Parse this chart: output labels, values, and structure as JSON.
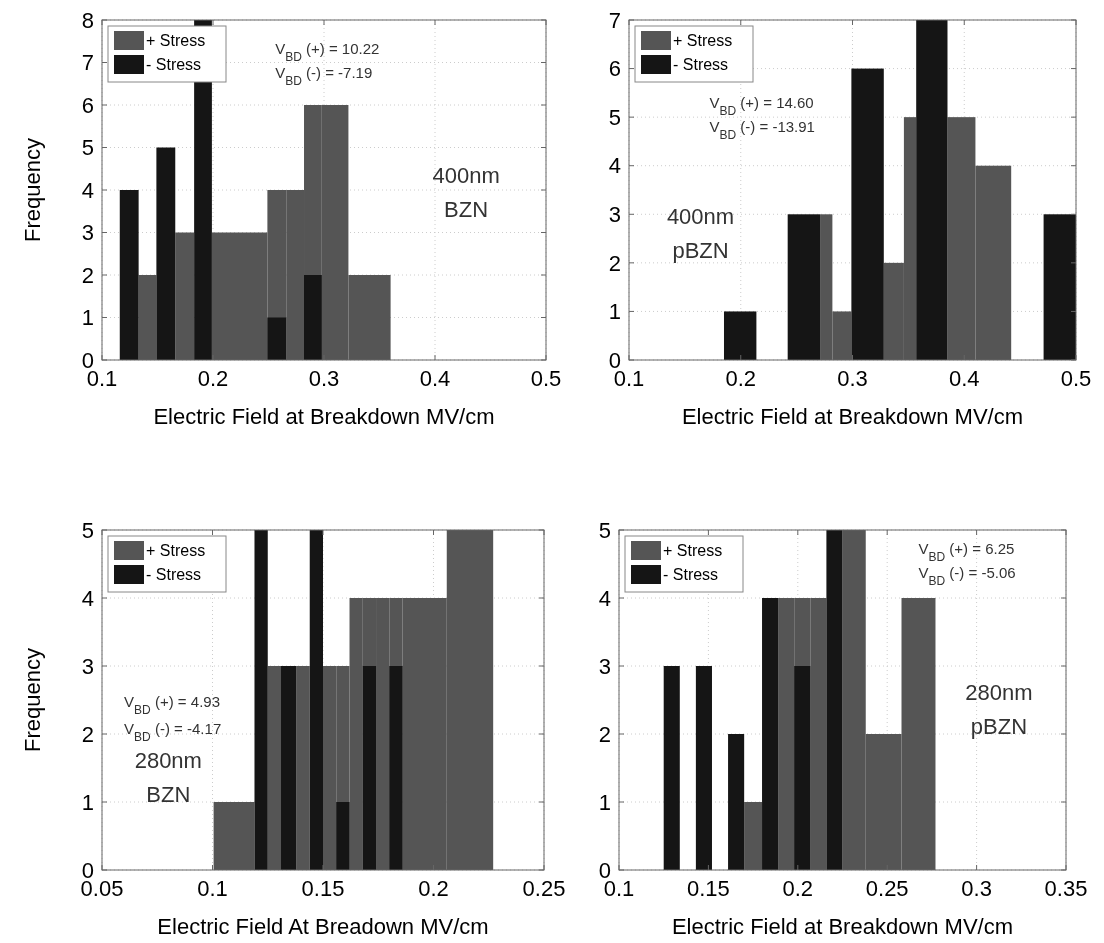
{
  "chart_data": [
    {
      "type": "histogram",
      "ylabel": "Frequency",
      "xlabel": "Electric Field at Breakdown MV/cm",
      "xlim": [
        0.1,
        0.5
      ],
      "xticks": [
        0.1,
        0.2,
        0.3,
        0.4,
        0.5
      ],
      "ylim": [
        0,
        8
      ],
      "yticks": [
        0,
        1,
        2,
        3,
        4,
        5,
        6,
        7,
        8
      ],
      "grid": true,
      "legend": "top left",
      "annotations": [
        "V$_{BD}$ (+) = 10.22",
        "V$_{BD}$ (-) = -7.19",
        "400nm",
        "BZN"
      ],
      "bins": [
        0.116,
        0.133,
        0.149,
        0.166,
        0.183,
        0.199,
        0.249,
        0.266,
        0.282,
        0.298,
        0.322,
        0.36
      ],
      "series": [
        {
          "name": "+ Stress",
          "color": "#555555",
          "values": [
            null,
            2,
            null,
            3,
            null,
            3,
            4,
            4,
            6,
            6,
            2
          ]
        },
        {
          "name": "- Stress",
          "color": "#151515",
          "values": [
            4,
            null,
            5,
            null,
            8,
            null,
            1,
            null,
            2,
            null,
            null
          ]
        }
      ]
    },
    {
      "type": "histogram",
      "xlabel": "Electric Field at Breakdown MV/cm",
      "xlim": [
        0.1,
        0.5
      ],
      "xticks": [
        0.1,
        0.2,
        0.3,
        0.4,
        0.5
      ],
      "ylim": [
        0,
        7
      ],
      "yticks": [
        0,
        1,
        2,
        3,
        4,
        5,
        6,
        7
      ],
      "grid": true,
      "legend": "top left",
      "annotations": [
        "V$_{BD}$ (+) = 14.60",
        "V$_{BD}$ (-) = -13.91",
        "400nm",
        "pBZN"
      ],
      "bins": [
        0.185,
        0.214,
        0.242,
        0.271,
        0.282,
        0.299,
        0.328,
        0.346,
        0.357,
        0.385,
        0.41,
        0.442,
        0.471,
        0.5
      ],
      "series": [
        {
          "name": "+ Stress",
          "color": "#555555",
          "values": [
            null,
            null,
            null,
            3,
            1,
            null,
            2,
            5,
            null,
            5,
            4,
            null,
            null
          ]
        },
        {
          "name": "- Stress",
          "color": "#151515",
          "values": [
            1,
            null,
            3,
            null,
            null,
            6,
            null,
            null,
            7,
            null,
            null,
            null,
            3
          ]
        }
      ]
    },
    {
      "type": "histogram",
      "ylabel": "Frequency",
      "xlabel": "Electric Field At Breadown MV/cm",
      "xlim": [
        0.05,
        0.25
      ],
      "xticks": [
        0.05,
        0.1,
        0.15,
        0.2,
        0.25
      ],
      "ylim": [
        0,
        5
      ],
      "yticks": [
        0,
        1,
        2,
        3,
        4,
        5
      ],
      "grid": true,
      "legend": "top left",
      "annotations": [
        "V$_{BD}$ (+) = 4.93",
        "V$_{BD}$ (-) = -4.17",
        "280nm",
        "BZN"
      ],
      "bins": [
        0.1005,
        0.119,
        0.125,
        0.131,
        0.138,
        0.144,
        0.15,
        0.156,
        0.162,
        0.168,
        0.174,
        0.18,
        0.186,
        0.206,
        0.227
      ],
      "series": [
        {
          "name": "+ Stress",
          "color": "#555555",
          "values": [
            1,
            null,
            3,
            null,
            3,
            null,
            3,
            3,
            4,
            4,
            4,
            4,
            4,
            5
          ]
        },
        {
          "name": "- Stress",
          "color": "#151515",
          "values": [
            null,
            5,
            null,
            3,
            null,
            5,
            null,
            1,
            null,
            3,
            null,
            3,
            null,
            null
          ]
        }
      ]
    },
    {
      "type": "histogram",
      "xlabel": "Electric Field at Breakdown MV/cm",
      "xlim": [
        0.1,
        0.35
      ],
      "xticks": [
        0.1,
        0.15,
        0.2,
        0.25,
        0.3,
        0.35
      ],
      "ylim": [
        0,
        5
      ],
      "yticks": [
        0,
        1,
        2,
        3,
        4,
        5
      ],
      "grid": true,
      "legend": "top left",
      "annotations": [
        "V$_{BD}$ (+) = 6.25",
        "V$_{BD}$ (-) = -5.06",
        "280nm",
        "pBZN"
      ],
      "bins": [
        0.125,
        0.134,
        0.143,
        0.152,
        0.161,
        0.17,
        0.18,
        0.189,
        0.198,
        0.207,
        0.216,
        0.225,
        0.238,
        0.258,
        0.277
      ],
      "series": [
        {
          "name": "+ Stress",
          "color": "#555555",
          "values": [
            null,
            null,
            null,
            null,
            null,
            1,
            null,
            4,
            4,
            4,
            null,
            5,
            2,
            4
          ]
        },
        {
          "name": "- Stress",
          "color": "#151515",
          "values": [
            3,
            null,
            3,
            null,
            2,
            null,
            4,
            null,
            3,
            null,
            5,
            null,
            null,
            null
          ]
        }
      ]
    }
  ]
}
